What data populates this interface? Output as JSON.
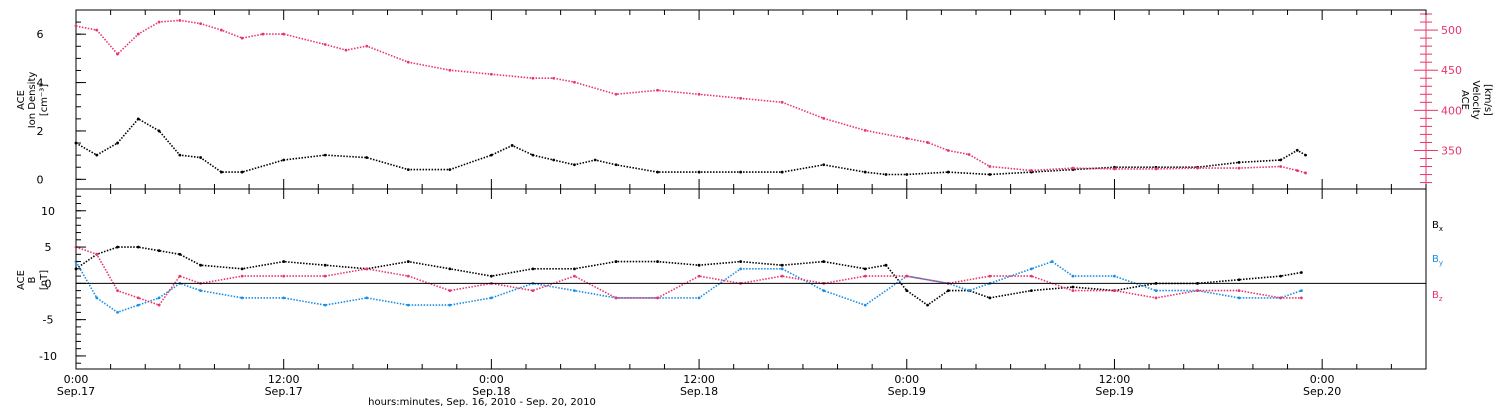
{
  "chart_data": [
    {
      "type": "scatter",
      "panel": "top",
      "ylabel_lines": [
        "ACE",
        "Ion Density",
        "[cm⁻³]"
      ],
      "ylim": [
        -0.4,
        7.0
      ],
      "yticks": [
        0,
        2,
        4,
        6
      ],
      "ylabel_right_lines": [
        "ACE",
        "Velocity",
        "[km/s]"
      ],
      "ylim_right": [
        302,
        525
      ],
      "yticks_right": [
        350,
        400,
        450,
        500
      ],
      "xlim": [
        0,
        3.25
      ],
      "series": [
        {
          "axis": "left",
          "color": "#000000",
          "x": [
            0,
            0.05,
            0.1,
            0.15,
            0.2,
            0.25,
            0.3,
            0.35,
            0.4,
            0.5,
            0.6,
            0.7,
            0.8,
            0.9,
            1.0,
            1.05,
            1.1,
            1.15,
            1.2,
            1.25,
            1.3,
            1.4,
            1.5,
            1.6,
            1.7,
            1.8,
            1.9,
            1.95,
            2.0,
            2.1,
            2.2,
            2.3,
            2.4,
            2.5,
            2.6,
            2.7,
            2.8,
            2.9,
            2.94,
            2.96
          ],
          "y": [
            1.5,
            1.0,
            1.5,
            2.5,
            2.0,
            1.0,
            0.9,
            0.3,
            0.3,
            0.8,
            1.0,
            0.9,
            0.4,
            0.4,
            1.0,
            1.4,
            1.0,
            0.8,
            0.6,
            0.8,
            0.6,
            0.3,
            0.3,
            0.3,
            0.3,
            0.6,
            0.3,
            0.2,
            0.2,
            0.3,
            0.2,
            0.3,
            0.4,
            0.5,
            0.5,
            0.5,
            0.7,
            0.8,
            1.2,
            1.0
          ]
        },
        {
          "axis": "right",
          "color": "#e8356a",
          "x": [
            0,
            0.05,
            0.1,
            0.15,
            0.2,
            0.25,
            0.3,
            0.35,
            0.4,
            0.45,
            0.5,
            0.6,
            0.65,
            0.7,
            0.8,
            0.9,
            1.0,
            1.1,
            1.15,
            1.2,
            1.3,
            1.4,
            1.5,
            1.6,
            1.7,
            1.8,
            1.9,
            2.0,
            2.05,
            2.1,
            2.15,
            2.2,
            2.3,
            2.4,
            2.5,
            2.6,
            2.7,
            2.8,
            2.9,
            2.94,
            2.96
          ],
          "y": [
            505,
            500,
            470,
            495,
            510,
            512,
            508,
            500,
            490,
            495,
            495,
            482,
            475,
            480,
            460,
            450,
            445,
            440,
            440,
            435,
            420,
            425,
            420,
            415,
            410,
            390,
            375,
            365,
            360,
            350,
            345,
            330,
            325,
            328,
            327,
            327,
            328,
            328,
            330,
            325,
            322
          ]
        }
      ]
    },
    {
      "type": "scatter",
      "panel": "bottom",
      "ylabel_lines": [
        "ACE",
        "B",
        "[nT]"
      ],
      "ylim": [
        -11.8,
        13.0
      ],
      "yticks": [
        -10,
        -5,
        0,
        5,
        10
      ],
      "xlim": [
        0,
        3.25
      ],
      "series": [
        {
          "name_main": "B",
          "name_sub": "x",
          "color": "#000000",
          "x": [
            0,
            0.05,
            0.1,
            0.15,
            0.2,
            0.25,
            0.3,
            0.4,
            0.5,
            0.6,
            0.7,
            0.8,
            0.9,
            1.0,
            1.1,
            1.2,
            1.3,
            1.4,
            1.5,
            1.6,
            1.7,
            1.8,
            1.9,
            1.95,
            2.0,
            2.05,
            2.1,
            2.15,
            2.2,
            2.3,
            2.4,
            2.5,
            2.6,
            2.7,
            2.8,
            2.9,
            2.95
          ],
          "y": [
            2,
            4,
            5,
            5,
            4.5,
            4,
            2.5,
            2,
            3,
            2.5,
            2,
            3,
            2,
            1,
            2,
            2,
            3,
            3,
            2.5,
            3,
            2.5,
            3,
            2,
            2.5,
            -1,
            -3,
            -1,
            -1,
            -2,
            -1,
            -0.5,
            -1,
            0,
            0,
            0.5,
            1,
            1.5
          ]
        },
        {
          "name_main": "B",
          "name_sub": "y",
          "color": "#1a8ee6",
          "x": [
            0,
            0.05,
            0.1,
            0.15,
            0.2,
            0.25,
            0.3,
            0.4,
            0.5,
            0.6,
            0.7,
            0.8,
            0.9,
            1.0,
            1.1,
            1.2,
            1.3,
            1.4,
            1.5,
            1.6,
            1.7,
            1.8,
            1.9,
            2.0,
            2.1,
            2.15,
            2.2,
            2.3,
            2.35,
            2.4,
            2.5,
            2.6,
            2.7,
            2.8,
            2.9,
            2.95
          ],
          "y": [
            3,
            -2,
            -4,
            -3,
            -2,
            0,
            -1,
            -2,
            -2,
            -3,
            -2,
            -3,
            -3,
            -2,
            0,
            -1,
            -2,
            -2,
            -2,
            2,
            2,
            -1,
            -3,
            1,
            0,
            -1,
            0,
            2,
            3,
            1,
            1,
            -1,
            -1,
            -2,
            -2,
            -1
          ]
        },
        {
          "name_main": "B",
          "name_sub": "z",
          "color": "#e8356a",
          "x": [
            0,
            0.05,
            0.1,
            0.15,
            0.2,
            0.25,
            0.3,
            0.4,
            0.5,
            0.6,
            0.7,
            0.8,
            0.9,
            1.0,
            1.1,
            1.2,
            1.3,
            1.4,
            1.5,
            1.6,
            1.7,
            1.8,
            1.9,
            2.0,
            2.1,
            2.2,
            2.3,
            2.4,
            2.5,
            2.6,
            2.7,
            2.8,
            2.9,
            2.95
          ],
          "y": [
            5,
            4,
            -1,
            -2,
            -3,
            1,
            0,
            1,
            1,
            1,
            2,
            1,
            -1,
            0,
            -1,
            1,
            -2,
            -2,
            1,
            0,
            1,
            0,
            1,
            1,
            0,
            1,
            1,
            -1,
            -1,
            -2,
            -1,
            -1,
            -2,
            -2
          ]
        }
      ]
    }
  ],
  "shared_x_axis": {
    "ticks": [
      {
        "x": 0.0,
        "time": "0:00",
        "date": "Sep.17"
      },
      {
        "x": 0.5,
        "time": "12:00",
        "date": "Sep.17"
      },
      {
        "x": 1.0,
        "time": "0:00",
        "date": "Sep.18"
      },
      {
        "x": 1.5,
        "time": "12:00",
        "date": "Sep.18"
      },
      {
        "x": 2.0,
        "time": "0:00",
        "date": "Sep.19"
      },
      {
        "x": 2.5,
        "time": "12:00",
        "date": "Sep.19"
      },
      {
        "x": 3.0,
        "time": "0:00",
        "date": "Sep.20"
      }
    ],
    "xlabel": "hours:minutes, Sep. 16, 2010 - Sep. 20, 2010"
  }
}
